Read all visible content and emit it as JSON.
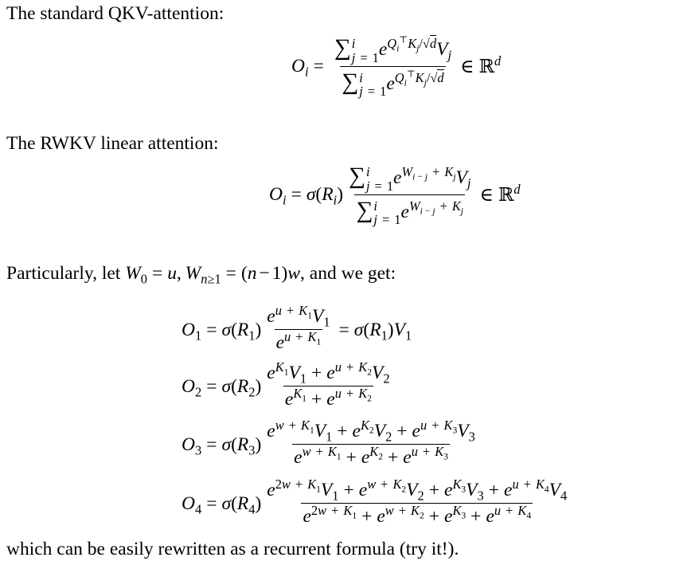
{
  "paragraphs": {
    "p1": "The standard QKV-attention:",
    "p2": "The RWKV linear attention:",
    "p3_prefix": "Particularly, let ",
    "p3_math": "W_0 = u, W_{n\\geq 1} = (n-1)w",
    "p3_suffix": ", and we get:",
    "p4": "which can be easily rewritten as a recurrent formula (try it!)."
  },
  "equations": {
    "qkv": {
      "lhs": "O_i =",
      "num": "\\sum_{j=1}^{i} e^{Q_i{}^\\top K_j/\\sqrt{d}}V_j",
      "den": "\\sum_{j=1}^{i} e^{Q_i{}^\\top K_j/\\sqrt{d}}",
      "rhs": "\\in \\R^d"
    },
    "rwkv": {
      "lhs": "O_i = \\sigma(R_i)",
      "num": "\\sum_{j=1}^{i} e^{W_{i-j}+K_j}V_j",
      "den": "\\sum_{j=1}^{i} e^{W_{i-j}+K_j}",
      "rhs": "\\in \\R^d"
    },
    "rows": [
      {
        "lhs": "O_1 = \\sigma(R_1)",
        "num": "e^{u+K_1}V_1",
        "den": "e^{u+K_1}",
        "rhs": "= \\sigma(R_1)V_1"
      },
      {
        "lhs": "O_2 = \\sigma(R_2)",
        "num": "e^{K_1}V_1 + e^{u+K_2}V_2",
        "den": "e^{K_1} + e^{u+K_2}",
        "rhs": ""
      },
      {
        "lhs": "O_3 = \\sigma(R_3)",
        "num": "e^{w+K_1}V_1 + e^{K_2}V_2 + e^{u+K_3}V_3",
        "den": "e^{w+K_1} + e^{K_2} + e^{u+K_3}",
        "rhs": ""
      },
      {
        "lhs": "O_4 = \\sigma(R_4)",
        "num": "e^{2w+K_1}V_1 + e^{w+K_2}V_2 + e^{K_3}V_3 + e^{u+K_4}V_4",
        "den": "e^{2w+K_1} + e^{w+K_2} + e^{K_3} + e^{u+K_4}",
        "rhs": ""
      }
    ]
  }
}
